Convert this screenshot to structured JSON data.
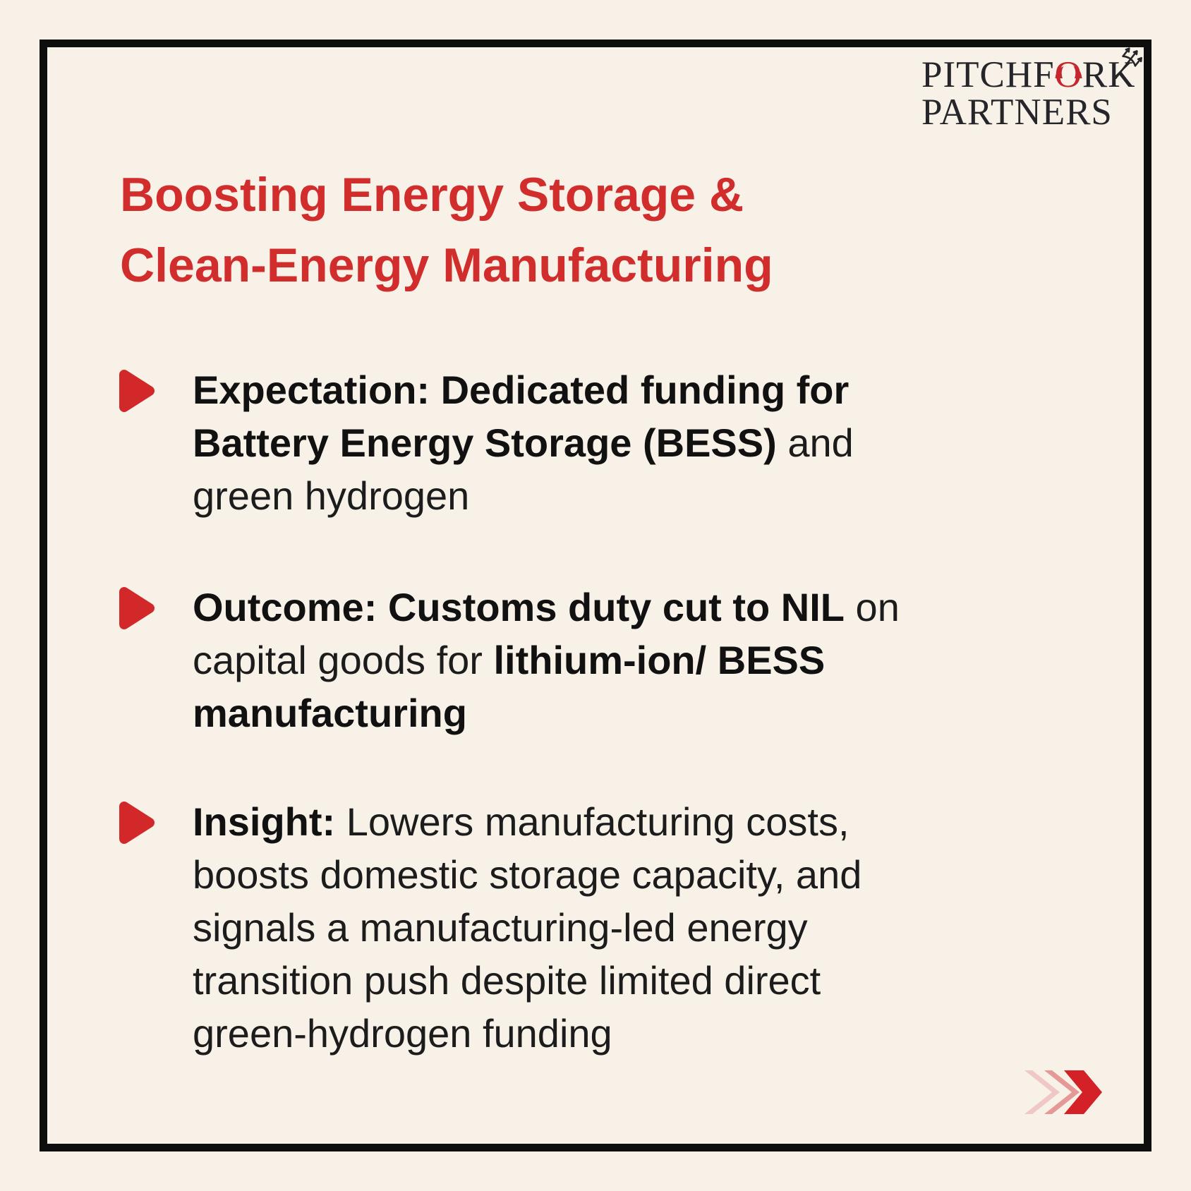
{
  "brand": {
    "name": "Pitchfork Partners",
    "line1_pre": "PITCHF",
    "line1_o": "O",
    "line1_post": "RK",
    "line2": "PARTNERS",
    "text_color": "#26262A",
    "o_color": "#C4272D"
  },
  "title": {
    "line1": "Boosting Energy Storage &",
    "line2": "Clean-Energy Manufacturing",
    "color": "#D22D2D"
  },
  "bullets": [
    {
      "id": "expectation",
      "lines": [
        [
          {
            "t": "Expectation: Dedicated funding for",
            "b": true
          }
        ],
        [
          {
            "t": "Battery Energy Storage (BESS)",
            "b": true
          },
          {
            "t": " and",
            "b": false
          }
        ],
        [
          {
            "t": "green hydrogen",
            "b": false
          }
        ]
      ]
    },
    {
      "id": "outcome",
      "lines": [
        [
          {
            "t": "Outcome: Customs duty cut to NIL",
            "b": true
          },
          {
            "t": " on",
            "b": false
          }
        ],
        [
          {
            "t": "capital goods for ",
            "b": false
          },
          {
            "t": "lithium-ion/ BESS",
            "b": true
          }
        ],
        [
          {
            "t": "manufacturing",
            "b": true
          }
        ]
      ]
    },
    {
      "id": "insight",
      "lines": [
        [
          {
            "t": "Insight:",
            "b": true
          },
          {
            "t": " Lowers manufacturing costs,",
            "b": false
          }
        ],
        [
          {
            "t": "boosts domestic storage capacity, and",
            "b": false
          }
        ],
        [
          {
            "t": "signals a manufacturing-led energy",
            "b": false
          }
        ],
        [
          {
            "t": "transition push despite limited direct",
            "b": false
          }
        ],
        [
          {
            "t": "green-hydrogen funding",
            "b": false
          }
        ]
      ]
    }
  ],
  "icons": {
    "bullet_marker": "play-triangle",
    "brand_mark": "pitchfork-trident",
    "brand_o_decoration": "devil-horns",
    "pagination": "triple-chevron-right"
  },
  "colors": {
    "background": "#F7F1E8",
    "frame": "#0E0E0E",
    "accent_red": "#D22D2D",
    "marker_red": "#D2282A",
    "chevron_light": "#F0C7C5",
    "chevron_mid": "#E59895",
    "chevron_solid": "#D32127",
    "text_bold": "#111111",
    "text_regular": "#1C1C1C"
  }
}
